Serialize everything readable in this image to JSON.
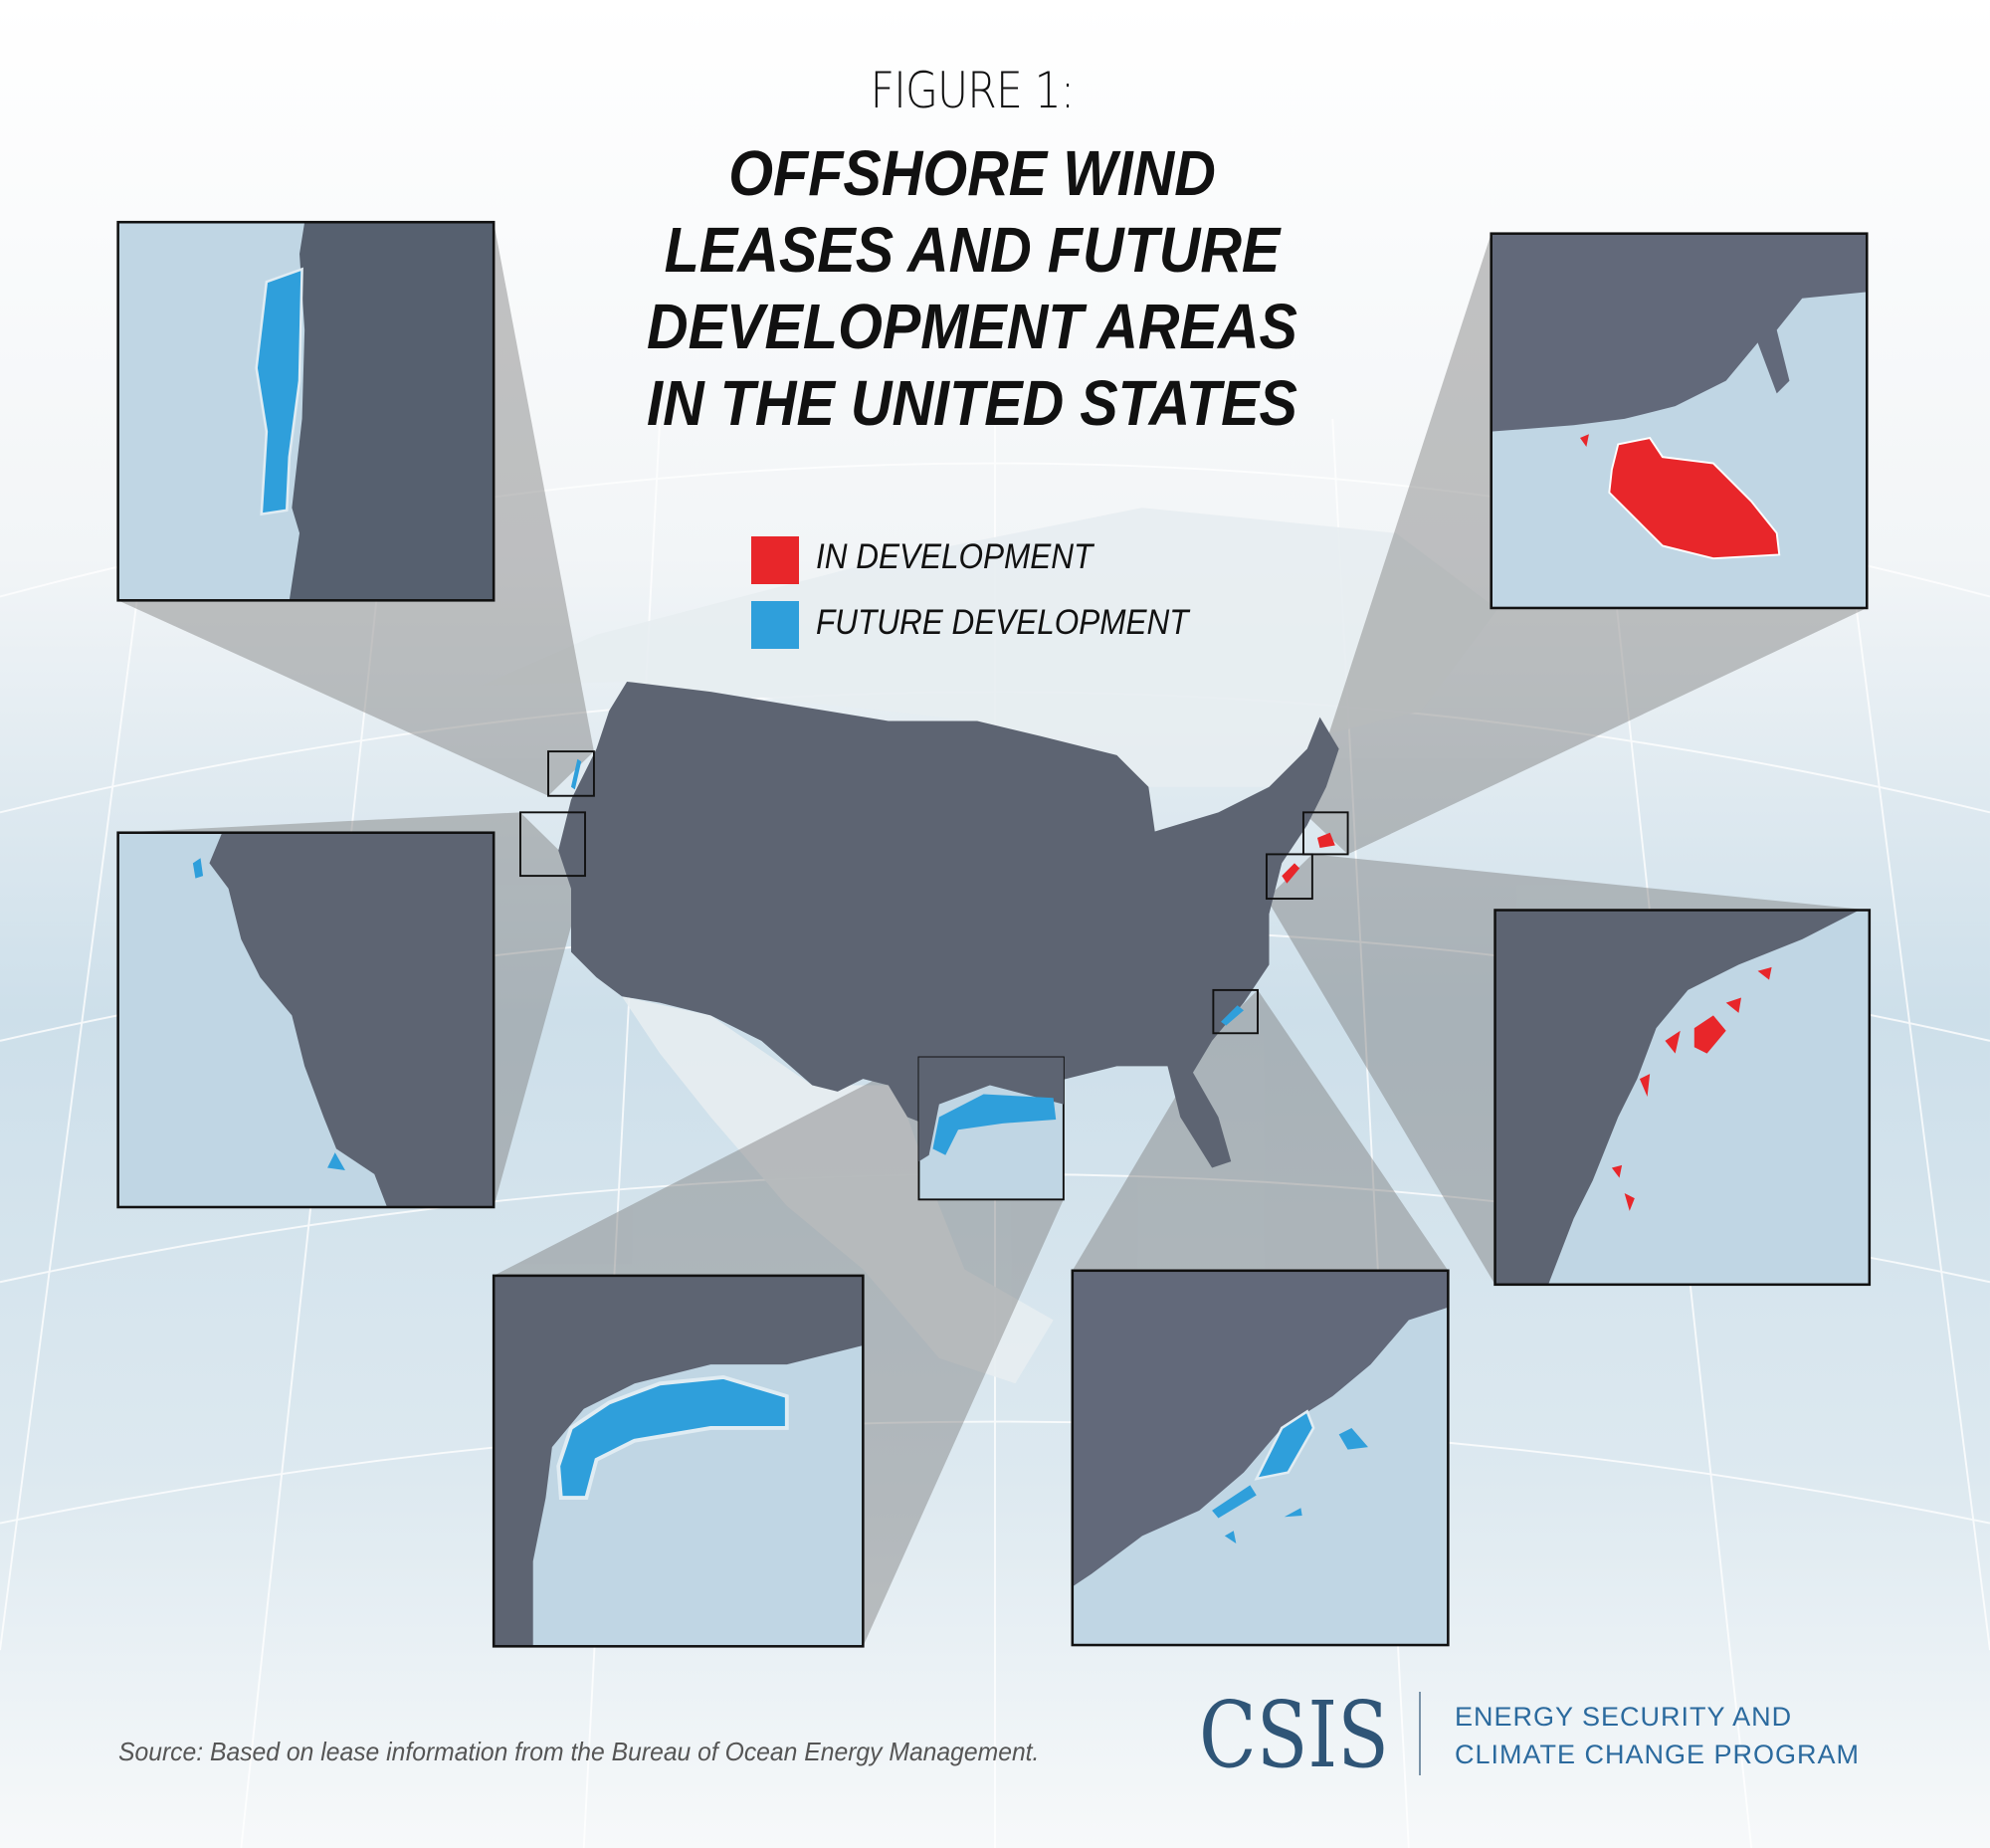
{
  "header": {
    "figure_label": "FIGURE 1:",
    "title_lines": [
      "OFFSHORE WIND",
      "LEASES AND FUTURE",
      "DEVELOPMENT AREAS",
      "IN THE UNITED STATES"
    ]
  },
  "legend": {
    "items": [
      {
        "label": "IN DEVELOPMENT",
        "color": "#e8262a"
      },
      {
        "label": "FUTURE DEVELOPMENT",
        "color": "#2f9fdb"
      }
    ]
  },
  "colors": {
    "land": "#5d6472",
    "water": "#c0d6e4",
    "in_development": "#e8262a",
    "future_development": "#2f9fdb",
    "projection": "#8c8c8c"
  },
  "insets": [
    {
      "region": "oregon-coast",
      "status": "future development"
    },
    {
      "region": "massachusetts-rhode-island",
      "status": "in development"
    },
    {
      "region": "california",
      "status": "future development"
    },
    {
      "region": "mid-atlantic",
      "status": "in development"
    },
    {
      "region": "gulf-of-mexico",
      "status": "future development"
    },
    {
      "region": "carolinas",
      "status": "future development"
    }
  ],
  "footer": {
    "source": "Source: Based on lease information from the Bureau of Ocean Energy Management.",
    "logo_text": "CSIS",
    "program_lines": [
      "ENERGY SECURITY AND",
      "CLIMATE CHANGE PROGRAM"
    ]
  }
}
